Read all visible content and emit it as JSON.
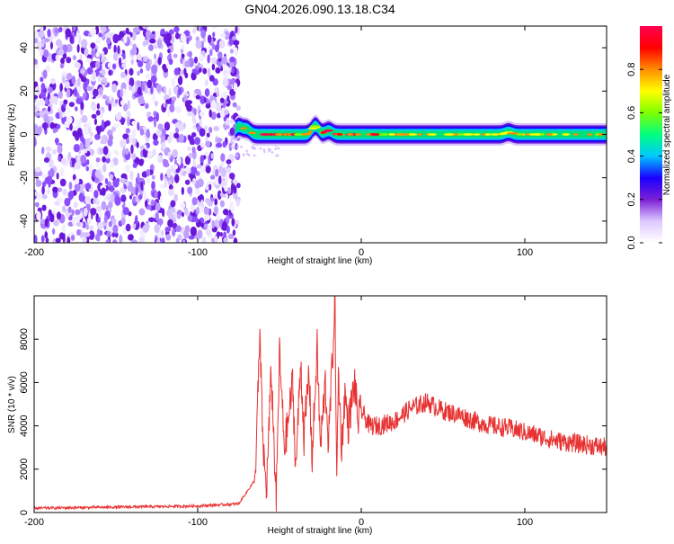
{
  "title": "GN04.2026.090.13.18.C34",
  "chart_data": [
    {
      "type": "heatmap",
      "xlabel": "Height of straight line (km)",
      "ylabel": "Frequency (Hz)",
      "xlim": [
        -200,
        150
      ],
      "ylim": [
        -50,
        50
      ],
      "xticks": [
        -200,
        -100,
        0,
        100
      ],
      "yticks": [
        -40,
        -20,
        0,
        20,
        40
      ],
      "colorbar": {
        "label": "Normalized spectral amplitude",
        "range": [
          0,
          1
        ],
        "ticks": [
          0.0,
          0.2,
          0.4,
          0.6,
          0.8
        ],
        "tick_labels": [
          "0.0",
          "0.2",
          "0.4",
          "0.6",
          "0.8"
        ],
        "colormap": [
          "#ffffff",
          "#dcc8ff",
          "#7b1fd6",
          "#1a00ff",
          "#00c8ff",
          "#00ff7f",
          "#7fff00",
          "#ffff00",
          "#ff8c00",
          "#ff0000",
          "#ff0050"
        ]
      },
      "noise_region": {
        "x": [
          -200,
          -75
        ],
        "y": [
          -50,
          50
        ]
      },
      "signal_ridge": {
        "x_start": -77,
        "x_end": 150,
        "freq_center": 0,
        "half_width": 3
      },
      "ridge_bumps": [
        {
          "x": -75,
          "freq": 5
        },
        {
          "x": -70,
          "freq": 3.5
        },
        {
          "x": -28,
          "freq": 5.5
        },
        {
          "x": -20,
          "freq": 2.5
        },
        {
          "x": 90,
          "freq": 1.5
        }
      ]
    },
    {
      "type": "line",
      "xlabel": "Height of straight line (km)",
      "ylabel": "SNR (10 * v/v)",
      "xlim": [
        -200,
        150
      ],
      "ylim": [
        0,
        10000
      ],
      "xticks": [
        -200,
        -100,
        0,
        100
      ],
      "yticks": [
        0,
        2000,
        4000,
        6000,
        8000
      ],
      "color": "#e83232",
      "series": [
        {
          "x": [
            -200,
            -150,
            -100,
            -75,
            -65,
            -62,
            -60,
            -58,
            -55,
            -52,
            -50,
            -47,
            -45,
            -42,
            -40,
            -37,
            -35,
            -32,
            -30,
            -27,
            -25,
            -22,
            -20,
            -18,
            -16,
            -15,
            -14,
            -12,
            -10,
            -8,
            -6,
            -4,
            -2,
            0,
            5,
            10,
            20,
            30,
            40,
            50,
            60,
            70,
            80,
            90,
            100,
            110,
            120,
            130,
            140,
            150
          ],
          "y": [
            200,
            250,
            300,
            400,
            1500,
            8000,
            3000,
            1000,
            6500,
            500,
            7300,
            3000,
            4000,
            6000,
            2000,
            7000,
            3500,
            6500,
            2500,
            7600,
            3000,
            6000,
            3200,
            6500,
            9800,
            1000,
            6500,
            3000,
            5500,
            4000,
            5000,
            6000,
            4200,
            4700,
            4000,
            4000,
            4200,
            4800,
            5100,
            4700,
            4500,
            4200,
            4000,
            3900,
            3700,
            3500,
            3300,
            3200,
            3100,
            3000
          ]
        }
      ]
    }
  ]
}
